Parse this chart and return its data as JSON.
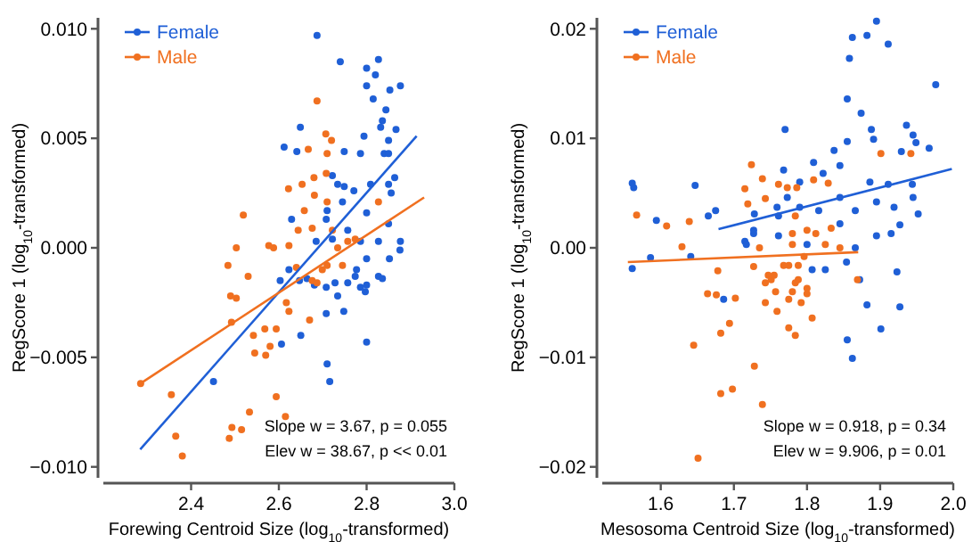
{
  "chart_data": [
    {
      "type": "scatter",
      "xlabel": "Forewing Centroid Size (log$_{10}$-transformed)",
      "ylabel": "RegScore 1 (log$_{10}$-transformed)",
      "xlim": [
        2.2,
        3.0
      ],
      "ylim": [
        -0.0105,
        0.0105
      ],
      "xticks": [
        2.4,
        2.6,
        2.8,
        {
          "value": 3.0,
          "label": "3.0"
        }
      ],
      "yticks": [
        {
          "value": -0.01,
          "label": "−0.010"
        },
        {
          "value": -0.005,
          "label": "−0.005"
        },
        {
          "value": 0,
          "label": "0.000"
        },
        {
          "value": 0.005,
          "label": "0.005"
        },
        {
          "value": 0.01,
          "label": "0.010"
        }
      ],
      "grid": false,
      "legend": "top left",
      "annotations": [
        "Slope w = 3.67, p = 0.055",
        "Elev w = 38.67, p << 0.01"
      ],
      "series": [
        {
          "name": "Female",
          "color": "#1f5fd6",
          "marker": "circle",
          "x": [
            2.687,
            2.74,
            2.827,
            2.8,
            2.82,
            2.877,
            2.853,
            2.8,
            2.815,
            2.844,
            2.836,
            2.832,
            2.867,
            2.85,
            2.649,
            2.794,
            2.786,
            2.84,
            2.85,
            2.749,
            2.641,
            2.612,
            2.722,
            2.864,
            2.809,
            2.85,
            2.771,
            2.856,
            2.734,
            2.749,
            2.745,
            2.8,
            2.71,
            2.708,
            2.629,
            2.685,
            2.722,
            2.757,
            2.786,
            2.827,
            2.877,
            2.876,
            2.85,
            2.852,
            2.8,
            2.777,
            2.827,
            2.836,
            2.8,
            2.786,
            2.797,
            2.757,
            2.728,
            2.708,
            2.681,
            2.647,
            2.623,
            2.603,
            2.664,
            2.748,
            2.708,
            2.65,
            2.606,
            2.8,
            2.71,
            2.716,
            2.451,
            2.734,
            2.774
          ],
          "values": [
            0.0097,
            0.0085,
            0.0086,
            0.0082,
            0.0079,
            0.0074,
            0.0072,
            0.0074,
            0.0068,
            0.0063,
            0.0058,
            0.0055,
            0.0054,
            0.0049,
            0.0055,
            0.0051,
            0.0043,
            0.0043,
            0.0043,
            0.0044,
            0.0044,
            0.0046,
            0.0033,
            0.0032,
            0.0029,
            0.0029,
            0.0026,
            0.0025,
            0.0029,
            0.0028,
            0.0021,
            0.0016,
            0.0017,
            0.0013,
            0.0013,
            0.0003,
            0.0004,
            0.0008,
            0.0003,
            0.0003,
            0.0003,
            -0.0001,
            0.0011,
            -0.0005,
            -0.0005,
            -0.001,
            -0.0013,
            -0.0014,
            -0.0017,
            -0.0018,
            -0.002,
            -0.0016,
            -0.0016,
            -0.0018,
            -0.0017,
            -0.0015,
            -0.001,
            -0.0015,
            -0.0014,
            -0.0029,
            -0.003,
            -0.004,
            -0.0044,
            -0.0043,
            -0.0053,
            -0.0061,
            -0.0061,
            -0.0022,
            -0.0013
          ]
        },
        {
          "name": "Male",
          "color": "#f07020",
          "marker": "circle",
          "x": [
            2.687,
            2.707,
            2.72,
            2.667,
            2.71,
            2.708,
            2.68,
            2.653,
            2.622,
            2.681,
            2.658,
            2.71,
            2.827,
            2.519,
            2.503,
            2.577,
            2.588,
            2.623,
            2.644,
            2.676,
            2.722,
            2.757,
            2.774,
            2.734,
            2.484,
            2.53,
            2.49,
            2.503,
            2.492,
            2.542,
            2.568,
            2.58,
            2.57,
            2.545,
            2.594,
            2.617,
            2.623,
            2.67,
            2.676,
            2.687,
            2.71,
            2.745,
            2.699,
            2.285,
            2.355,
            2.365,
            2.38,
            2.487,
            2.493,
            2.515,
            2.533,
            2.594,
            2.615,
            2.64
          ],
          "values": [
            0.0067,
            0.0052,
            0.0049,
            0.0045,
            0.0043,
            0.0034,
            0.0032,
            0.0029,
            0.0027,
            0.0024,
            0.0017,
            0.0021,
            0.0021,
            0.0015,
            0.0,
            0.0001,
            0.0,
            0.0001,
            0.0008,
            0.0009,
            0.0008,
            0.0003,
            0.0004,
            0.0,
            -0.0008,
            -0.0013,
            -0.0022,
            -0.0023,
            -0.0034,
            -0.004,
            -0.0037,
            -0.0045,
            -0.0049,
            -0.0048,
            -0.0037,
            -0.0025,
            -0.0029,
            -0.0033,
            -0.0015,
            -0.0016,
            -0.0008,
            -0.0008,
            -0.001,
            -0.0062,
            -0.0067,
            -0.0086,
            -0.0095,
            -0.0087,
            -0.0082,
            -0.0083,
            -0.0075,
            -0.0068,
            -0.0077,
            -0.0009
          ]
        },
        {
          "type": "line",
          "color": "#1f5fd6",
          "x": [
            2.284,
            2.914
          ],
          "values": [
            -0.0092,
            0.0051
          ]
        },
        {
          "type": "line",
          "color": "#f07020",
          "x": [
            2.284,
            2.931
          ],
          "values": [
            -0.0062,
            0.0023
          ]
        }
      ]
    },
    {
      "type": "scatter",
      "xlabel": "Mesosoma Centroid Size (log$_{10}$-transformed)",
      "ylabel": "RegScore 1 (log$_{10}$-transformed)",
      "xlim": [
        1.52,
        2.0
      ],
      "ylim": [
        -0.021,
        0.021
      ],
      "xticks": [
        1.6,
        1.7,
        1.8,
        1.9,
        {
          "value": 2.0,
          "label": "2.0"
        }
      ],
      "yticks": [
        {
          "value": -0.02,
          "label": "−0.02"
        },
        {
          "value": -0.01,
          "label": "−0.01"
        },
        {
          "value": 0,
          "label": "0.00"
        },
        {
          "value": 0.01,
          "label": "0.01"
        },
        {
          "value": 0.02,
          "label": "0.02"
        }
      ],
      "grid": false,
      "legend": "top left",
      "annotations": [
        "Slope w = 0.918, p = 0.34",
        "Elev w = 9.906, p = 0.01"
      ],
      "series": [
        {
          "name": "Female",
          "color": "#1f5fd6",
          "marker": "circle",
          "x": [
            1.895,
            1.862,
            1.882,
            1.911,
            1.858,
            1.976,
            1.855,
            1.874,
            1.77,
            1.888,
            1.936,
            1.891,
            1.855,
            1.945,
            1.949,
            1.837,
            1.929,
            1.967,
            1.563,
            1.561,
            1.647,
            1.594,
            1.768,
            1.809,
            1.845,
            1.822,
            1.79,
            1.886,
            1.911,
            1.944,
            1.945,
            1.773,
            1.759,
            1.79,
            1.816,
            1.845,
            1.866,
            1.895,
            1.919,
            1.952,
            1.665,
            1.675,
            1.728,
            1.761,
            1.715,
            1.717,
            1.727,
            1.727,
            1.761,
            1.8,
            1.845,
            1.895,
            1.915,
            1.866,
            1.927,
            1.561,
            1.586,
            1.641,
            1.807,
            1.825,
            1.854,
            1.686,
            1.872,
            1.882,
            1.901,
            1.855,
            1.862,
            1.923,
            1.927
          ],
          "values": [
            0.0207,
            0.0192,
            0.0194,
            0.0186,
            0.0173,
            0.0149,
            0.0136,
            0.0123,
            0.0108,
            0.0108,
            0.0112,
            0.0099,
            0.0097,
            0.0103,
            0.0096,
            0.0089,
            0.0088,
            0.0091,
            0.0055,
            0.0059,
            0.0057,
            0.0025,
            0.0071,
            0.0078,
            0.0075,
            0.0068,
            0.006,
            0.006,
            0.0058,
            0.0058,
            0.0046,
            0.0046,
            0.0037,
            0.0037,
            0.0034,
            0.0046,
            0.0034,
            0.0042,
            0.0037,
            0.0031,
            0.0029,
            0.0034,
            0.0031,
            0.0029,
            0.0006,
            0.0003,
            0.0013,
            0.0016,
            0.0011,
            0.0003,
            0.0022,
            0.0011,
            0.0013,
            0.0,
            0.0021,
            -0.0019,
            -0.0009,
            -0.0008,
            -0.002,
            -0.002,
            -0.0013,
            -0.0047,
            -0.0029,
            -0.0052,
            -0.0074,
            -0.0084,
            -0.0101,
            -0.0022,
            -0.0054
          ]
        },
        {
          "name": "Male",
          "color": "#f07020",
          "marker": "circle",
          "x": [
            1.567,
            1.608,
            1.639,
            1.629,
            1.724,
            1.739,
            1.715,
            1.719,
            1.743,
            1.761,
            1.773,
            1.786,
            1.809,
            1.829,
            1.901,
            1.942,
            1.78,
            1.784,
            1.812,
            1.8,
            1.833,
            1.735,
            1.78,
            1.825,
            1.845,
            1.678,
            1.664,
            1.676,
            1.702,
            1.682,
            1.645,
            1.694,
            1.728,
            1.682,
            1.698,
            1.739,
            1.651,
            1.727,
            1.743,
            1.747,
            1.751,
            1.755,
            1.757,
            1.743,
            1.759,
            1.775,
            1.78,
            1.784,
            1.788,
            1.792,
            1.8,
            1.8,
            1.807,
            1.775,
            1.784,
            1.768,
            1.775,
            1.788,
            1.796,
            1.869
          ],
          "values": [
            0.003,
            0.002,
            0.0024,
            0.0001,
            0.0076,
            0.0063,
            0.0054,
            0.004,
            0.0045,
            0.0058,
            0.0055,
            0.0055,
            0.0062,
            0.0059,
            0.0086,
            0.0086,
            0.0013,
            0.0029,
            0.0013,
            0.0016,
            0.0018,
            0.0,
            0.0003,
            0.0003,
            0.0,
            -0.0021,
            -0.0042,
            -0.0043,
            -0.0046,
            -0.0078,
            -0.0089,
            -0.0069,
            -0.0108,
            -0.0133,
            -0.0129,
            -0.0143,
            -0.0192,
            -0.0017,
            -0.0032,
            -0.0025,
            -0.0029,
            -0.0025,
            -0.004,
            -0.005,
            -0.0058,
            -0.0047,
            -0.004,
            -0.0032,
            -0.0029,
            -0.005,
            -0.0042,
            -0.0037,
            -0.0064,
            -0.0073,
            -0.008,
            -0.0016,
            -0.0016,
            -0.0016,
            -0.0008,
            -0.0029
          ]
        },
        {
          "type": "line",
          "color": "#1f5fd6",
          "x": [
            1.679,
            1.998
          ],
          "values": [
            0.0017,
            0.0072
          ]
        },
        {
          "type": "line",
          "color": "#f07020",
          "x": [
            1.555,
            1.87
          ],
          "values": [
            -0.0013,
            -0.0004
          ]
        }
      ]
    }
  ]
}
